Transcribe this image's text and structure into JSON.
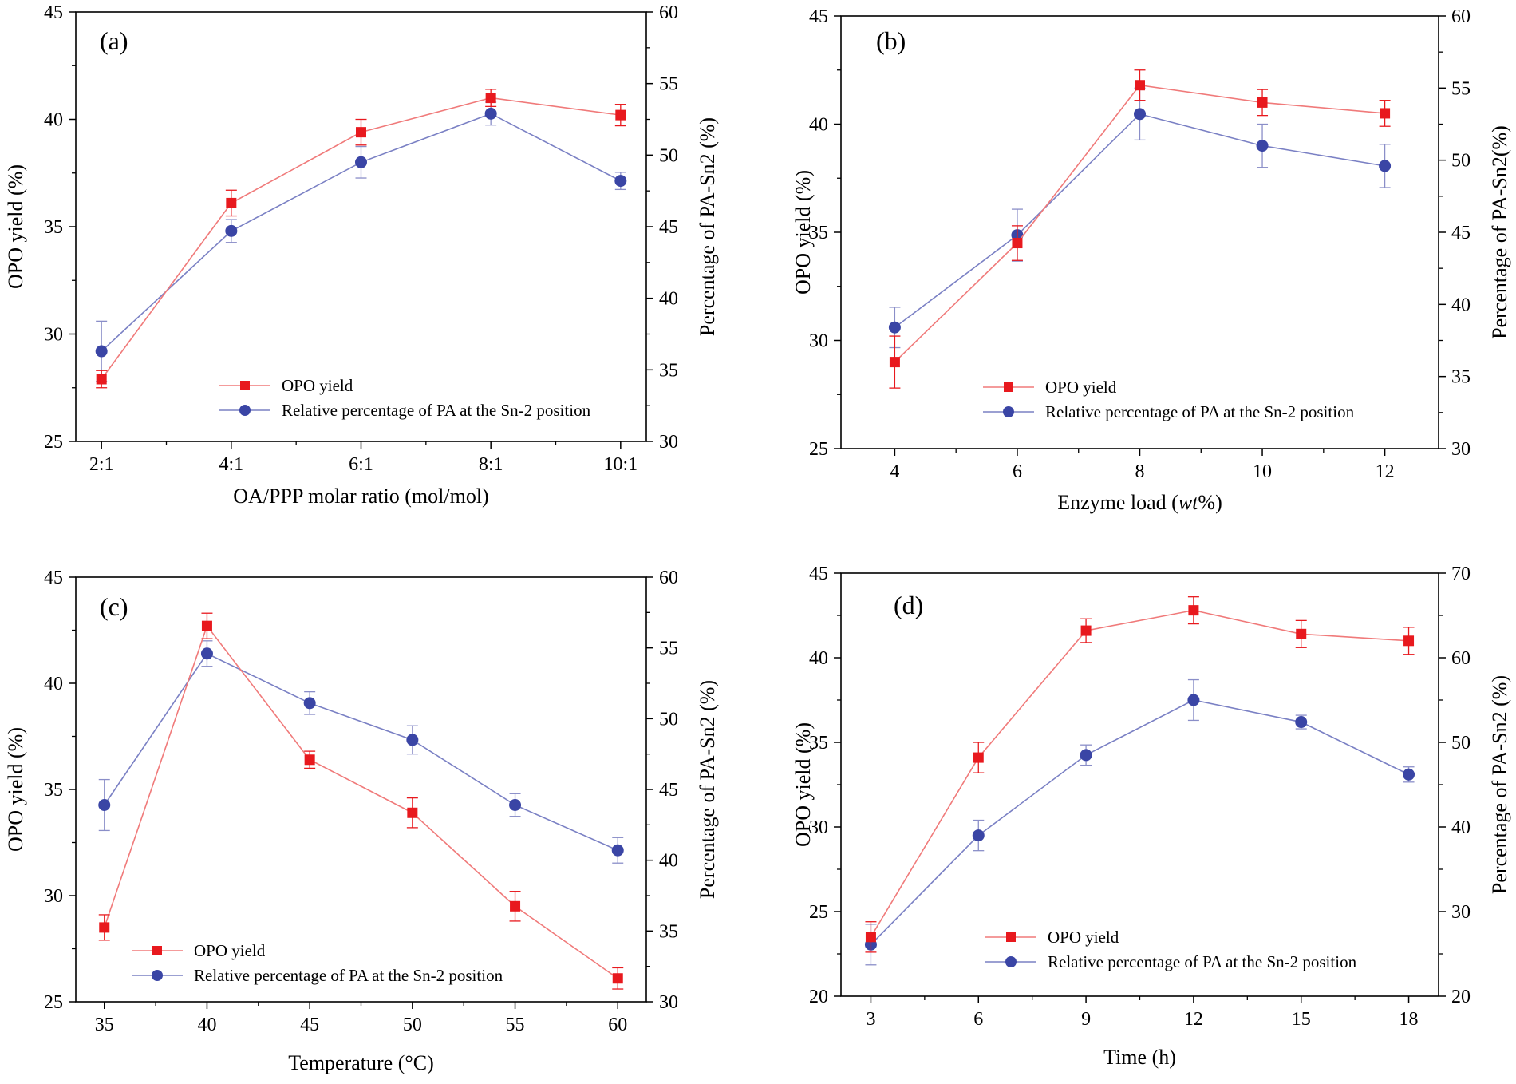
{
  "colors": {
    "opo": "#e8191e",
    "pa": "#3a45a5",
    "opo_line": "#f07a7a",
    "pa_line": "#7a80c4",
    "err_pa": "#8a8ec8"
  },
  "chart_data": [
    {
      "type": "line",
      "panel": "(a)",
      "xlabel": "OA/PPP molar ratio (mol/mol)",
      "ylabel_left": "OPO yield (%)",
      "ylabel_right": "Percentage of PA-Sn2 (%)",
      "categories": [
        "2:1",
        "4:1",
        "6:1",
        "8:1",
        "10:1"
      ],
      "x_tick_labels": [
        "2:1",
        "4:1",
        "6:1",
        "8:1",
        "10:1"
      ],
      "ylim_left": [
        25,
        45
      ],
      "yticks_left": [
        25,
        30,
        35,
        40,
        45
      ],
      "ylim_right": [
        30,
        60
      ],
      "yticks_right": [
        30,
        35,
        40,
        45,
        50,
        55,
        60
      ],
      "legend": "bottom-center",
      "series": [
        {
          "name": "OPO yield",
          "axis": "left",
          "marker": "square",
          "values": [
            27.9,
            36.1,
            39.4,
            41.0,
            40.2
          ],
          "errors": [
            0.4,
            0.6,
            0.6,
            0.4,
            0.5
          ]
        },
        {
          "name": "Relative percentage of PA at the Sn-2 position",
          "axis": "right",
          "marker": "circle",
          "values": [
            36.3,
            44.7,
            49.5,
            52.9,
            48.2
          ],
          "errors": [
            2.1,
            0.8,
            1.1,
            0.8,
            0.6
          ]
        }
      ]
    },
    {
      "type": "line",
      "panel": "(b)",
      "xlabel": "Enzyme load (wt%)",
      "xlabel_parts": [
        "Enzyme load (",
        "wt",
        "%)"
      ],
      "ylabel_left": "OPO yield (%)",
      "ylabel_right": "Percentage of PA-Sn2(%)",
      "x": [
        4,
        6,
        8,
        10,
        12
      ],
      "x_tick_labels": [
        "4",
        "6",
        "8",
        "10",
        "12"
      ],
      "ylim_left": [
        25,
        45
      ],
      "yticks_left": [
        25,
        30,
        35,
        40,
        45
      ],
      "ylim_right": [
        30,
        60
      ],
      "yticks_right": [
        30,
        35,
        40,
        45,
        50,
        55,
        60
      ],
      "legend": "bottom-right",
      "series": [
        {
          "name": "OPO yield",
          "axis": "left",
          "marker": "square",
          "values": [
            29.0,
            34.5,
            41.8,
            41.0,
            40.5
          ],
          "errors": [
            1.2,
            0.8,
            0.7,
            0.6,
            0.6
          ]
        },
        {
          "name": "Relative percentage of PA at the Sn-2 position",
          "axis": "right",
          "marker": "circle",
          "values": [
            38.4,
            44.8,
            53.2,
            51.0,
            49.6
          ],
          "errors": [
            1.4,
            1.8,
            1.8,
            1.5,
            1.5
          ]
        }
      ]
    },
    {
      "type": "line",
      "panel": "(c)",
      "xlabel": "Temperature (°C)",
      "ylabel_left": "OPO yield (%)",
      "ylabel_right": "Percentage of PA-Sn2 (%)",
      "x": [
        35,
        40,
        45,
        50,
        55,
        60
      ],
      "x_tick_labels": [
        "35",
        "40",
        "45",
        "50",
        "55",
        "60"
      ],
      "ylim_left": [
        25,
        45
      ],
      "yticks_left": [
        25,
        30,
        35,
        40,
        45
      ],
      "ylim_right": [
        30,
        60
      ],
      "yticks_right": [
        30,
        35,
        40,
        45,
        50,
        55,
        60
      ],
      "legend": "bottom-left",
      "series": [
        {
          "name": "OPO yield",
          "axis": "left",
          "marker": "square",
          "values": [
            28.5,
            42.7,
            36.4,
            33.9,
            29.5,
            26.1
          ],
          "errors": [
            0.6,
            0.6,
            0.4,
            0.7,
            0.7,
            0.5
          ]
        },
        {
          "name": "Relative percentage of PA at the Sn-2 position",
          "axis": "right",
          "marker": "circle",
          "values": [
            43.9,
            54.6,
            51.1,
            48.5,
            43.9,
            40.7
          ],
          "errors": [
            1.8,
            0.9,
            0.8,
            1.0,
            0.8,
            0.9
          ]
        }
      ]
    },
    {
      "type": "line",
      "panel": "(d)",
      "xlabel": "Time (h)",
      "ylabel_left": "OPO yield (%)",
      "ylabel_right": "Percentage of PA-Sn2 (%)",
      "x": [
        3,
        6,
        9,
        12,
        15,
        18
      ],
      "x_tick_labels": [
        "3",
        "6",
        "9",
        "12",
        "15",
        "18"
      ],
      "ylim_left": [
        20,
        45
      ],
      "yticks_left": [
        20,
        25,
        30,
        35,
        40,
        45
      ],
      "ylim_right": [
        20,
        70
      ],
      "yticks_right": [
        20,
        30,
        40,
        50,
        60,
        70
      ],
      "legend": "bottom-right",
      "series": [
        {
          "name": "OPO yield",
          "axis": "left",
          "marker": "square",
          "values": [
            23.5,
            34.1,
            41.6,
            42.8,
            41.4,
            41.0
          ],
          "errors": [
            0.9,
            0.9,
            0.7,
            0.8,
            0.8,
            0.8
          ]
        },
        {
          "name": "Relative percentage of PA at the Sn-2 position",
          "axis": "right",
          "marker": "circle",
          "values": [
            26.1,
            39.0,
            48.5,
            55.0,
            52.4,
            46.2
          ],
          "errors": [
            2.4,
            1.8,
            1.2,
            2.4,
            0.8,
            0.9
          ]
        }
      ]
    }
  ]
}
